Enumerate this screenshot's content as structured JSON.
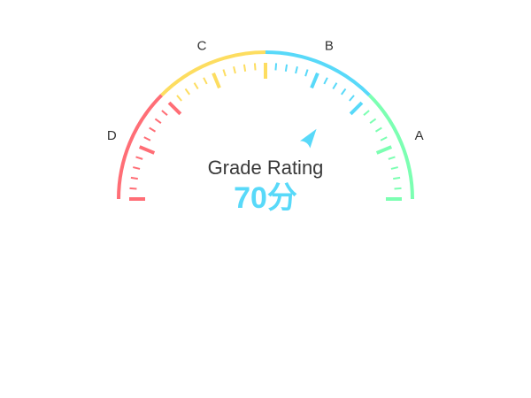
{
  "chart_data": {
    "type": "gauge",
    "title": "Grade Rating",
    "value": 0.7,
    "value_text": "70分",
    "min": 0,
    "max": 1,
    "split_number": 8,
    "bands": [
      {
        "to": 0.25,
        "color": "#FF6E76"
      },
      {
        "to": 0.5,
        "color": "#FDDD60"
      },
      {
        "to": 0.75,
        "color": "#58D9F9"
      },
      {
        "to": 1.0,
        "color": "#7CFFB2"
      }
    ],
    "grade_labels": [
      {
        "label": "D",
        "at": 0.125
      },
      {
        "label": "C",
        "at": 0.375
      },
      {
        "label": "B",
        "at": 0.625
      },
      {
        "label": "A",
        "at": 0.875
      }
    ],
    "pointer_color": "#58D9F9",
    "value_color": "#58D9F9"
  }
}
